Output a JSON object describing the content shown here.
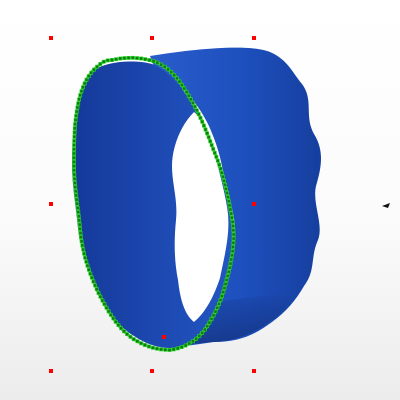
{
  "viewport": {
    "mode": "3d-model-viewer",
    "background_top": "#ffffff",
    "background_bottom": "#ebebeb"
  },
  "model": {
    "shape": "wavy-cylinder-band",
    "surface_color": "#1f4fb8",
    "surface_color_dark": "#0f2f86",
    "surface_color_light": "#2f68d6",
    "selected_edge": "front-rim",
    "selected_edge_color": "#2bd62b",
    "edge_vertex_color": "#147a14"
  },
  "handles": {
    "color": "#ff0000",
    "icon": "square-control-point",
    "count": 9
  },
  "cursor": {
    "icon": "pointer-arrow-icon"
  }
}
